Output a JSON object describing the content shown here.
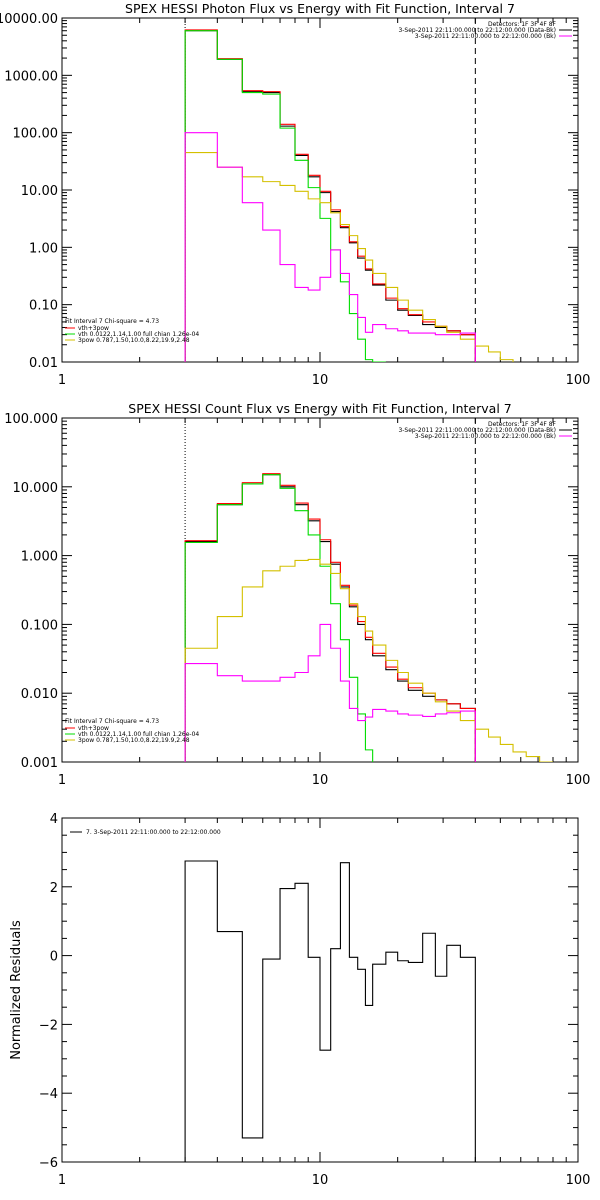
{
  "colors": {
    "vth_3pow": "#ff0000",
    "vth": "#00dd00",
    "3pow": "#d4c000",
    "background": "#ff00ff",
    "data": "#000000"
  },
  "chart_data": [
    {
      "type": "line",
      "title": "SPEX HESSI Photon Flux vs Energy with Fit Function, Interval 7",
      "xscale": "log",
      "yscale": "log",
      "xlim": [
        1,
        100
      ],
      "ylim": [
        0.01,
        10000
      ],
      "xticks": [
        1,
        10,
        100
      ],
      "xtick_labels": [
        "1",
        "10",
        "100"
      ],
      "yticks": [
        10000,
        1000,
        100,
        10,
        1,
        0.1,
        0.01
      ],
      "ytick_labels": [
        "10000.00",
        "1000.00",
        "100.00",
        "10.00",
        "1.00",
        "0.10",
        "0.01"
      ],
      "legend_top_right": [
        "Detectors: 1F 3F 4F 8F",
        "3-Sep-2011 22:11:00.000 to 22:12:00.000 (Data-Bk)",
        "3-Sep-2011 22:11:00.000 to 22:12:00.000 (Bk)"
      ],
      "legend_top_right_colors": [
        "",
        "#000000",
        "#ff00ff"
      ],
      "legend_bottom_left": [
        "Fit Interval 7   Chi-square = 4.73",
        "vth+3pow",
        "vth 0.0122,1.14,1.00  full chian 1.26e-04",
        "3pow 0.787,1.50,10.0,8.22,19.9,2.48"
      ],
      "legend_bottom_left_colors": [
        "",
        "#ff0000",
        "#00dd00",
        "#d4c000"
      ],
      "vlines": [
        {
          "x": 3,
          "style": "dotted"
        },
        {
          "x": 40,
          "style": "dashed"
        }
      ],
      "edges": [
        3,
        4,
        5,
        6,
        7,
        8,
        9,
        10,
        11,
        12,
        13,
        14,
        15,
        16,
        18,
        20,
        22,
        25,
        28,
        31,
        35,
        40,
        45,
        50,
        56
      ],
      "series": [
        {
          "name": "Data-Bk",
          "color": "#000000",
          "start": 0,
          "values": [
            6000,
            1900,
            520,
            500,
            130,
            40,
            17,
            9,
            4.2,
            2.2,
            1.2,
            0.65,
            0.4,
            0.22,
            0.12,
            0.08,
            0.065,
            0.045,
            0.04,
            0.035,
            0.03
          ]
        },
        {
          "name": "vth+3pow",
          "color": "#ff0000",
          "start": 0,
          "values": [
            6200,
            1950,
            540,
            520,
            140,
            42,
            18,
            9.5,
            4.5,
            2.3,
            1.25,
            0.7,
            0.42,
            0.23,
            0.13,
            0.085,
            0.067,
            0.05,
            0.042,
            0.035,
            0.03
          ]
        },
        {
          "name": "vth",
          "color": "#00dd00",
          "start": 0,
          "values": [
            6000,
            1900,
            500,
            470,
            120,
            33,
            11,
            3.2,
            0.9,
            0.25,
            0.07,
            0.025,
            0.011,
            0.005
          ]
        },
        {
          "name": "3pow",
          "color": "#d4c000",
          "start": 0,
          "values": [
            45,
            25,
            17,
            14,
            12,
            9.5,
            7,
            6,
            4,
            2.5,
            1.6,
            0.95,
            0.6,
            0.35,
            0.2,
            0.12,
            0.08,
            0.055,
            0.042,
            0.033,
            0.025,
            0.019,
            0.015,
            0.011
          ]
        },
        {
          "name": "Bk",
          "color": "#ff00ff",
          "start": 0,
          "values": [
            100,
            25,
            6,
            2,
            0.5,
            0.2,
            0.18,
            0.3,
            0.9,
            0.35,
            0.15,
            0.06,
            0.033,
            0.045,
            0.038,
            0.035,
            0.032,
            0.032,
            0.03,
            0.03,
            0.032
          ]
        }
      ]
    },
    {
      "type": "line",
      "title": "SPEX HESSI Count Flux vs Energy with Fit Function, Interval 7",
      "xscale": "log",
      "yscale": "log",
      "xlim": [
        1,
        100
      ],
      "ylim": [
        0.001,
        100
      ],
      "xticks": [
        1,
        10,
        100
      ],
      "xtick_labels": [
        "1",
        "10",
        "100"
      ],
      "yticks": [
        100,
        10,
        1,
        0.1,
        0.01,
        0.001
      ],
      "ytick_labels": [
        "100.000",
        "10.000",
        "1.000",
        "0.100",
        "0.010",
        "0.001"
      ],
      "legend_top_right": [
        "Detectors: 1F 3F 4F 8F",
        "3-Sep-2011 22:11:00.000 to 22:12:00.000 (Data-Bk)",
        "3-Sep-2011 22:11:00.000 to 22:12:00.000 (Bk)"
      ],
      "legend_top_right_colors": [
        "",
        "#000000",
        "#ff00ff"
      ],
      "legend_bottom_left": [
        "Fit Interval 7   Chi-square = 4.73",
        "vth+3pow",
        "vth 0.0122,1.14,1.00  full chian 1.26e-04",
        "3pow 0.787,1.50,10.0,8.22,19.9,2.48"
      ],
      "legend_bottom_left_colors": [
        "",
        "#ff0000",
        "#00dd00",
        "#d4c000"
      ],
      "vlines": [
        {
          "x": 3,
          "style": "dotted"
        },
        {
          "x": 40,
          "style": "dashed"
        }
      ],
      "edges": [
        3,
        4,
        5,
        6,
        7,
        8,
        9,
        10,
        11,
        12,
        13,
        14,
        15,
        16,
        18,
        20,
        22,
        25,
        28,
        31,
        35,
        40,
        45,
        50,
        56,
        63,
        71,
        80
      ],
      "series": [
        {
          "name": "Data-Bk",
          "color": "#000000",
          "start": 0,
          "values": [
            1.6,
            5.5,
            11,
            15,
            10,
            5.5,
            3.2,
            1.6,
            0.75,
            0.35,
            0.18,
            0.1,
            0.06,
            0.035,
            0.022,
            0.015,
            0.011,
            0.009,
            0.008,
            0.007,
            0.006
          ]
        },
        {
          "name": "vth+3pow",
          "color": "#ff0000",
          "start": 0,
          "values": [
            1.65,
            5.7,
            11.5,
            15.5,
            10.5,
            5.8,
            3.4,
            1.7,
            0.8,
            0.37,
            0.19,
            0.11,
            0.065,
            0.038,
            0.024,
            0.016,
            0.012,
            0.01,
            0.008,
            0.007,
            0.006
          ]
        },
        {
          "name": "vth",
          "color": "#00dd00",
          "start": 0,
          "values": [
            1.55,
            5.5,
            11,
            15,
            9.5,
            4.5,
            2,
            0.7,
            0.2,
            0.06,
            0.017,
            0.005,
            0.0015
          ]
        },
        {
          "name": "3pow",
          "color": "#d4c000",
          "start": 0,
          "values": [
            0.045,
            0.13,
            0.35,
            0.6,
            0.7,
            0.85,
            0.88,
            0.75,
            0.55,
            0.33,
            0.2,
            0.13,
            0.08,
            0.05,
            0.03,
            0.02,
            0.014,
            0.01,
            0.0075,
            0.0055,
            0.004,
            0.003,
            0.0023,
            0.0018,
            0.0014,
            0.0012,
            0.001
          ]
        },
        {
          "name": "Bk",
          "color": "#ff00ff",
          "start": 0,
          "values": [
            0.027,
            0.018,
            0.015,
            0.015,
            0.017,
            0.02,
            0.035,
            0.1,
            0.045,
            0.015,
            0.006,
            0.004,
            0.0045,
            0.0058,
            0.0055,
            0.005,
            0.0048,
            0.0046,
            0.005,
            0.0052,
            0.0055
          ]
        }
      ]
    },
    {
      "type": "line",
      "title": "",
      "xscale": "log",
      "yscale": "linear",
      "xlim": [
        1,
        100
      ],
      "ylim": [
        -6,
        4
      ],
      "xticks": [
        1,
        10,
        100
      ],
      "xtick_labels": [
        "1",
        "10",
        "100"
      ],
      "yticks": [
        4,
        2,
        0,
        -2,
        -4,
        -6
      ],
      "ytick_labels": [
        "4",
        "2",
        "0",
        "−2",
        "−4",
        "−6"
      ],
      "ylabel": "Normalized Residuals",
      "legend_top_left": "7. 3-Sep-2011 22:11:00.000 to 22:12:00.000",
      "edges": [
        3,
        4,
        5,
        6,
        7,
        8,
        9,
        10,
        11,
        12,
        13,
        14,
        15,
        16,
        18,
        20,
        22,
        25,
        28,
        31,
        35,
        40
      ],
      "series": [
        {
          "name": "residuals",
          "color": "#000000",
          "start": 0,
          "values": [
            2.75,
            0.7,
            -5.3,
            -0.1,
            1.95,
            2.1,
            -0.05,
            -2.75,
            0.2,
            2.7,
            -0.05,
            -0.4,
            -1.45,
            -0.25,
            0.1,
            -0.15,
            -0.2,
            0.65,
            -0.6,
            0.3,
            -0.05
          ]
        }
      ]
    }
  ]
}
